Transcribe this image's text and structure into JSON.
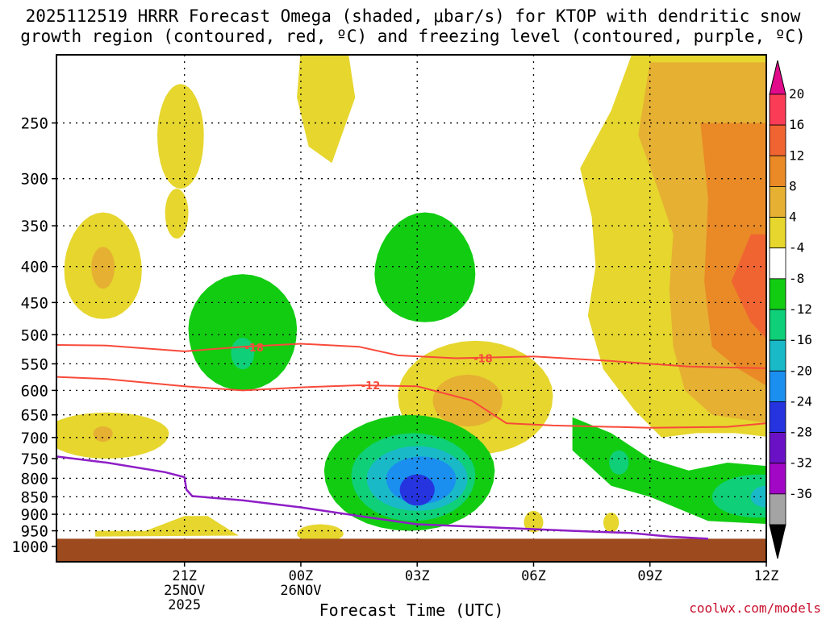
{
  "title_line1": "2025112519 HRRR Forecast Omega (shaded, μbar/s) for KTOP with dendritic snow",
  "title_line2": "growth region (contoured, red, ºC) and freezing level (contoured, purple, ºC)",
  "credit": "coolwx.com/models",
  "chart_data": {
    "type": "time-height cross-section (filled contour)",
    "xlabel": "Forecast Time (UTC)",
    "x_range_hours_from_18Z": [
      -0.3,
      18.0
    ],
    "x_ticks": [
      {
        "hour": 3,
        "label": "21Z",
        "sub1": "25NOV",
        "sub2": "2025"
      },
      {
        "hour": 6,
        "label": "00Z",
        "sub1": "26NOV",
        "sub2": ""
      },
      {
        "hour": 9,
        "label": "03Z",
        "sub1": "",
        "sub2": ""
      },
      {
        "hour": 12,
        "label": "06Z",
        "sub1": "",
        "sub2": ""
      },
      {
        "hour": 15,
        "label": "09Z",
        "sub1": "",
        "sub2": ""
      },
      {
        "hour": 18,
        "label": "12Z",
        "sub1": "",
        "sub2": ""
      }
    ],
    "y_axis": "pressure (hPa)",
    "y_ticks": [
      250,
      300,
      350,
      400,
      450,
      500,
      550,
      600,
      650,
      700,
      750,
      800,
      850,
      900,
      950,
      1000
    ],
    "grid": true,
    "colorbar": {
      "labels": [
        "20",
        "16",
        "12",
        "8",
        "4",
        "-4",
        "-8",
        "-12",
        "-16",
        "-20",
        "-24",
        "-28",
        "-32",
        "-36"
      ],
      "colors": [
        "#fb3c57",
        "#f06432",
        "#e98a26",
        "#e6b033",
        "#e6d62e",
        "#ffffff",
        "#12cc12",
        "#0fcf78",
        "#19b9c8",
        "#1a8fef",
        "#2634e0",
        "#6a11c6",
        "#a207c6",
        "#a4a4a4"
      ],
      "top_arrow_color": "#e00a8a",
      "bottom_arrow_color": "#000000"
    },
    "omega_features": [
      {
        "level": 4,
        "center_hour": 1.2,
        "center_p": 400,
        "note": "weak ascent aloft"
      },
      {
        "level": -8,
        "center_hour": 4.5,
        "center_p": 470,
        "note": "ascent"
      },
      {
        "level": -8,
        "center_hour": 9.2,
        "center_p": 410,
        "note": "ascent"
      },
      {
        "level": -24,
        "center_hour": 9.0,
        "center_p": 830,
        "note": "strongest ascent core"
      },
      {
        "level": 8,
        "center_hour": 10.5,
        "center_p": 600,
        "note": "subsidence"
      },
      {
        "level": -8,
        "center_hour": 14.5,
        "center_p": 770,
        "note": "ascent"
      },
      {
        "level": -16,
        "center_hour": 17.8,
        "center_p": 850,
        "note": "ascent"
      },
      {
        "level": 16,
        "center_hour": 17.6,
        "center_p": 420,
        "note": "strong subsidence upper right"
      }
    ],
    "dgz_contours": [
      {
        "label": "-18",
        "color": "#f84a3a",
        "points": [
          [
            -0.3,
            517
          ],
          [
            1,
            518
          ],
          [
            3,
            528
          ],
          [
            4.5,
            520
          ],
          [
            6,
            515
          ],
          [
            7.5,
            520
          ],
          [
            8.5,
            535
          ],
          [
            10,
            540
          ],
          [
            12,
            537
          ],
          [
            14,
            545
          ],
          [
            16,
            555
          ],
          [
            18,
            558
          ]
        ]
      },
      {
        "label": "-12",
        "color": "#f84a3a",
        "points": [
          [
            -0.3,
            574
          ],
          [
            1,
            578
          ],
          [
            3,
            592
          ],
          [
            4.5,
            600
          ],
          [
            6,
            594
          ],
          [
            7.5,
            590
          ],
          [
            9,
            592
          ],
          [
            10.4,
            620
          ],
          [
            11.3,
            668
          ],
          [
            12.5,
            673
          ],
          [
            15,
            678
          ],
          [
            17,
            676
          ],
          [
            18,
            668
          ]
        ]
      }
    ],
    "freezing_level": {
      "label": "0",
      "color": "#8e1ec6",
      "points": [
        [
          -0.3,
          745
        ],
        [
          1,
          760
        ],
        [
          2.5,
          784
        ],
        [
          3,
          797
        ],
        [
          3.05,
          830
        ],
        [
          3.2,
          848
        ],
        [
          4.5,
          860
        ],
        [
          6,
          880
        ],
        [
          7.5,
          905
        ],
        [
          9,
          930
        ],
        [
          11,
          940
        ],
        [
          13,
          950
        ],
        [
          14.5,
          957
        ],
        [
          15.5,
          968
        ],
        [
          16.5,
          975
        ]
      ]
    },
    "ground_color": "#9c4a1e"
  }
}
